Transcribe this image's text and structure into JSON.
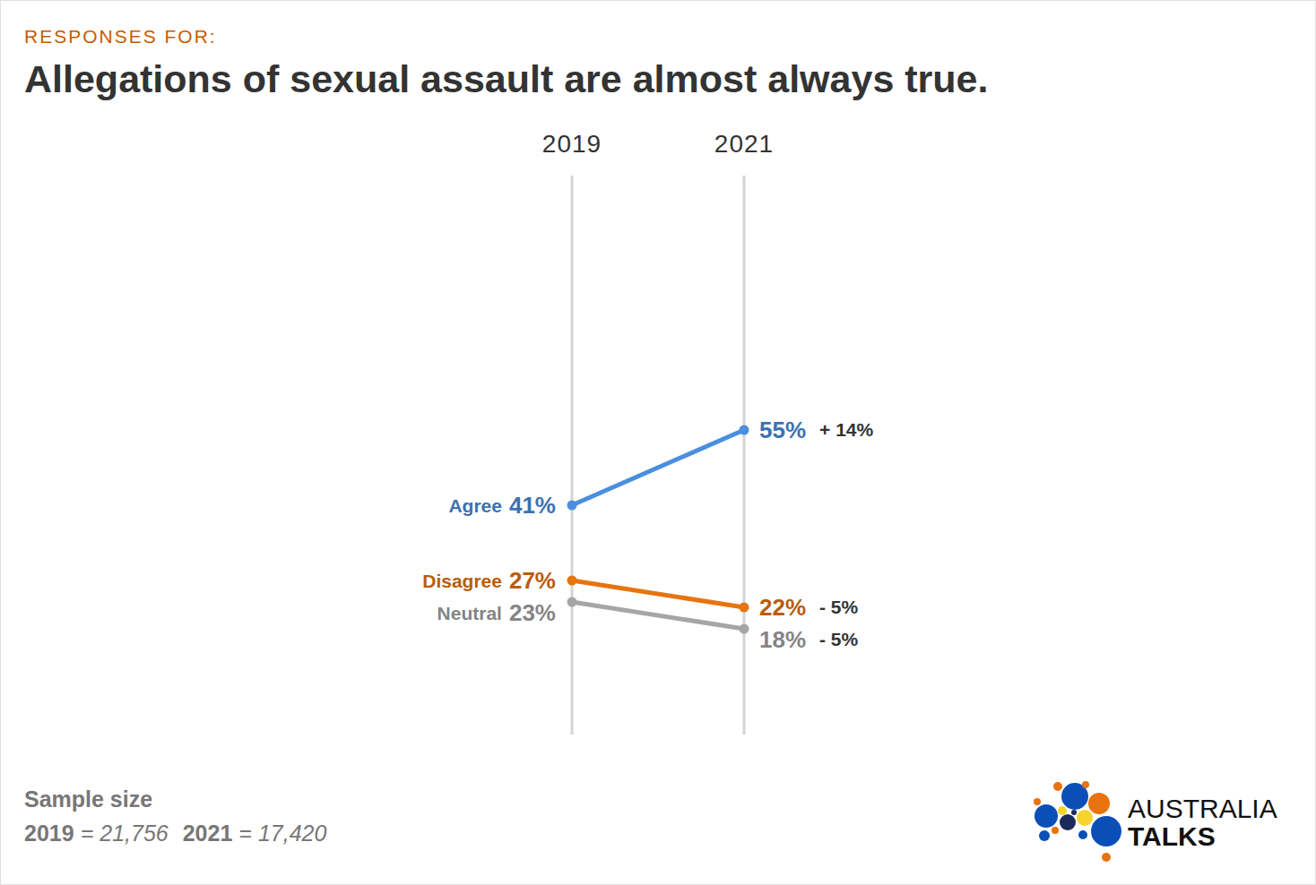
{
  "chart_data": {
    "type": "slope",
    "kicker": "RESPONSES FOR:",
    "title": "Allegations of sexual assault are almost always true.",
    "categories": [
      "2019",
      "2021"
    ],
    "series": [
      {
        "name": "Agree",
        "color": "#4a8fdf",
        "values": [
          41,
          55
        ],
        "value_labels": [
          "41%",
          "55%"
        ],
        "change": {
          "value": 14,
          "label": "+ 14%"
        }
      },
      {
        "name": "Disagree",
        "color": "#e8730f",
        "values": [
          27,
          22
        ],
        "value_labels": [
          "27%",
          "22%"
        ],
        "change": {
          "value": -5,
          "label": "- 5%"
        }
      },
      {
        "name": "Neutral",
        "color": "#a6a6a6",
        "values": [
          23,
          18
        ],
        "value_labels": [
          "23%",
          "18%"
        ],
        "change": {
          "value": -5,
          "label": "- 5%"
        }
      }
    ],
    "ylim": [
      0,
      100
    ],
    "tick_labels": "x",
    "data_labels": true,
    "marker": "circle",
    "sample_size": {
      "title": "Sample size",
      "entries": [
        {
          "label": "2019",
          "sign": "=",
          "value": "21,756"
        },
        {
          "label": "2021",
          "sign": "=",
          "value": "17,420"
        }
      ]
    },
    "brand": [
      "AUSTRALIA",
      "TALKS"
    ]
  }
}
